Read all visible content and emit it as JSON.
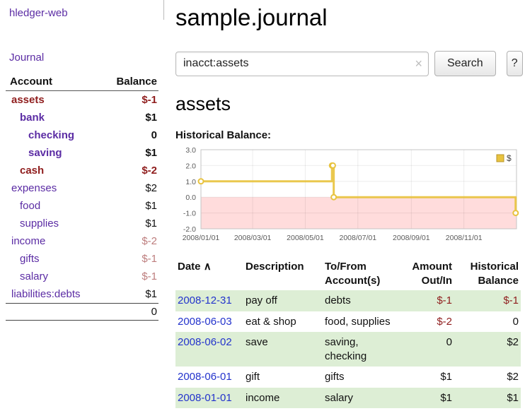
{
  "app": {
    "brand": "hledger-web"
  },
  "colors": {
    "link_purple": "#5b2ca4",
    "link_blue": "#2333cc",
    "negative": "#8f1d1d",
    "negative_muted": "#bd7d7d",
    "row_highlight": "#ddeed5"
  },
  "sidebar": {
    "journal_link": "Journal",
    "accounts": {
      "header_account": "Account",
      "header_balance": "Balance",
      "rows": [
        {
          "name": "assets",
          "balance": "$-1",
          "indent": 0,
          "bold": true,
          "name_negative": true,
          "balance_class": "neg"
        },
        {
          "name": "bank",
          "balance": "$1",
          "indent": 1,
          "bold": true,
          "name_negative": false,
          "balance_class": ""
        },
        {
          "name": "checking",
          "balance": "0",
          "indent": 2,
          "bold": true,
          "name_negative": false,
          "balance_class": ""
        },
        {
          "name": "saving",
          "balance": "$1",
          "indent": 2,
          "bold": true,
          "name_negative": false,
          "balance_class": ""
        },
        {
          "name": "cash",
          "balance": "$-2",
          "indent": 1,
          "bold": true,
          "name_negative": true,
          "balance_class": "neg"
        },
        {
          "name": "expenses",
          "balance": "$2",
          "indent": 0,
          "bold": false,
          "name_negative": false,
          "balance_class": ""
        },
        {
          "name": "food",
          "balance": "$1",
          "indent": 1,
          "bold": false,
          "name_negative": false,
          "balance_class": ""
        },
        {
          "name": "supplies",
          "balance": "$1",
          "indent": 1,
          "bold": false,
          "name_negative": false,
          "balance_class": ""
        },
        {
          "name": "income",
          "balance": "$-2",
          "indent": 0,
          "bold": false,
          "name_negative": false,
          "balance_class": "muted"
        },
        {
          "name": "gifts",
          "balance": "$-1",
          "indent": 1,
          "bold": false,
          "name_negative": false,
          "balance_class": "muted"
        },
        {
          "name": "salary",
          "balance": "$-1",
          "indent": 1,
          "bold": false,
          "name_negative": false,
          "balance_class": "muted"
        },
        {
          "name": "liabilities:debts",
          "balance": "$1",
          "indent": 0,
          "bold": false,
          "name_negative": false,
          "balance_class": ""
        }
      ],
      "total": "0"
    }
  },
  "main": {
    "title": "sample.journal",
    "search": {
      "value": "inacct:assets",
      "clear_icon": "×",
      "button_label": "Search",
      "help_label": "?"
    },
    "section_heading": "assets",
    "chart_heading": "Historical Balance:"
  },
  "chart_data": {
    "type": "line",
    "step": true,
    "title": "Historical Balance",
    "x": [
      "2008-01-01",
      "2008-06-01",
      "2008-06-02",
      "2008-06-03",
      "2008-12-31"
    ],
    "series": [
      {
        "name": "$",
        "values": [
          1,
          2,
          2,
          0,
          -1
        ]
      }
    ],
    "xrange": [
      "2008-01-01",
      "2009-01-01"
    ],
    "ylim": [
      -2.0,
      3.0
    ],
    "yticks": [
      -2.0,
      -1.0,
      0.0,
      1.0,
      2.0,
      3.0
    ],
    "ytick_labels": [
      "-2.0",
      "-1.0",
      "0.0",
      "1.0",
      "2.0",
      "3.0"
    ],
    "xtick_labels": [
      "2008/01/01",
      "2008/03/01",
      "2008/05/01",
      "2008/07/01",
      "2008/09/01",
      "2008/11/01"
    ],
    "legend": {
      "label": "$",
      "position": "top-right"
    },
    "grid": true,
    "colors": {
      "line": "#e8c33f",
      "marker_fill": "#ffffff",
      "negative_region": "#ffdcdc",
      "border": "#c4c4c4",
      "legend_swatch_border": "#b89628"
    }
  },
  "transactions": {
    "headers": [
      "Date",
      "Description",
      "To/From Account(s)",
      "Amount Out/In",
      "Historical Balance"
    ],
    "sort_icon": "∧",
    "rows": [
      {
        "date": "2008-12-31",
        "description": "pay off",
        "accounts": "debts",
        "amount": "$-1",
        "amount_negative": true,
        "balance": "$-1",
        "balance_negative": true
      },
      {
        "date": "2008-06-03",
        "description": "eat & shop",
        "accounts": "food, supplies",
        "amount": "$-2",
        "amount_negative": true,
        "balance": "0",
        "balance_negative": false
      },
      {
        "date": "2008-06-02",
        "description": "save",
        "accounts": "saving, checking",
        "amount": "0",
        "amount_negative": false,
        "balance": "$2",
        "balance_negative": false
      },
      {
        "date": "2008-06-01",
        "description": "gift",
        "accounts": "gifts",
        "amount": "$1",
        "amount_negative": false,
        "balance": "$2",
        "balance_negative": false
      },
      {
        "date": "2008-01-01",
        "description": "income",
        "accounts": "salary",
        "amount": "$1",
        "amount_negative": false,
        "balance": "$1",
        "balance_negative": false
      }
    ]
  }
}
